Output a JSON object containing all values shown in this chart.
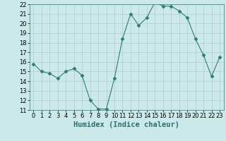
{
  "title": "",
  "xlabel": "Humidex (Indice chaleur)",
  "ylabel": "",
  "x": [
    0,
    1,
    2,
    3,
    4,
    5,
    6,
    7,
    8,
    9,
    10,
    11,
    12,
    13,
    14,
    15,
    16,
    17,
    18,
    19,
    20,
    21,
    22,
    23
  ],
  "y": [
    15.8,
    15.0,
    14.8,
    14.3,
    15.0,
    15.3,
    14.6,
    12.0,
    11.1,
    11.1,
    14.3,
    18.4,
    21.0,
    19.8,
    20.6,
    22.2,
    21.8,
    21.8,
    21.3,
    20.6,
    18.4,
    16.7,
    14.5,
    16.5
  ],
  "line_color": "#2e7d6e",
  "marker": "D",
  "marker_size": 2.5,
  "bg_color": "#cce9e9",
  "grid_color": "#b0cccc",
  "ylim": [
    11,
    22
  ],
  "xlim": [
    -0.5,
    23.5
  ],
  "yticks": [
    11,
    12,
    13,
    14,
    15,
    16,
    17,
    18,
    19,
    20,
    21,
    22
  ],
  "xticks": [
    0,
    1,
    2,
    3,
    4,
    5,
    6,
    7,
    8,
    9,
    10,
    11,
    12,
    13,
    14,
    15,
    16,
    17,
    18,
    19,
    20,
    21,
    22,
    23
  ],
  "tick_fontsize": 6.0,
  "xlabel_fontsize": 7.5
}
